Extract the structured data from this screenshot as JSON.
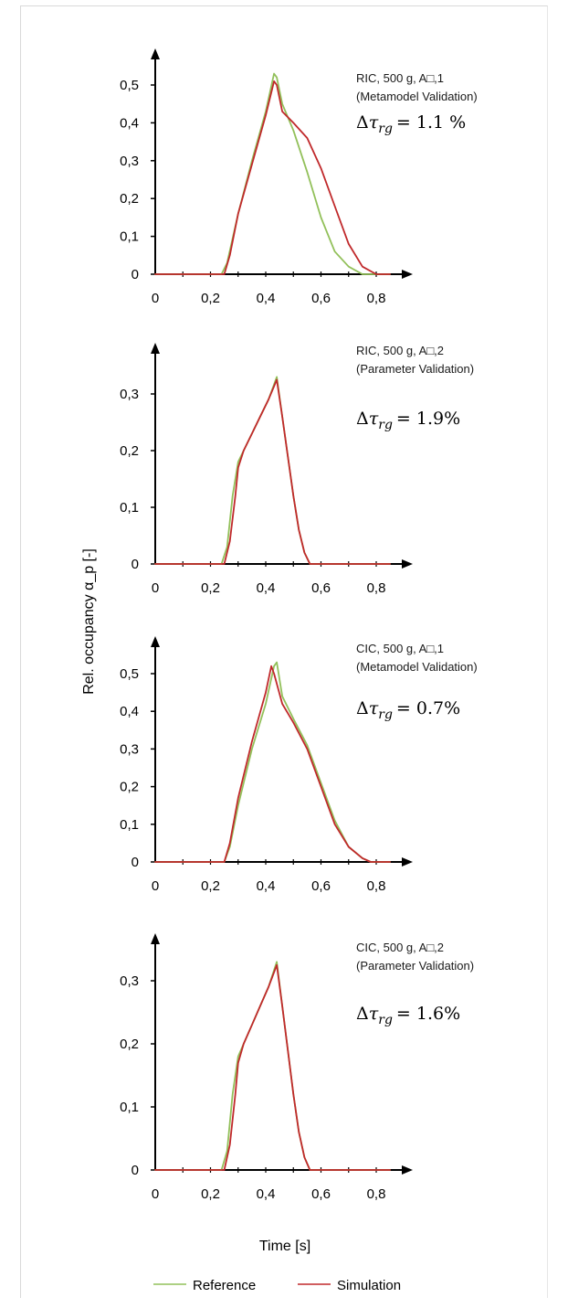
{
  "ylabel": "Rel. occupancy α_p [-]",
  "xlabel": "Time [s]",
  "legend": [
    {
      "label": "Reference",
      "color": "#92c05a"
    },
    {
      "label": "Simulation",
      "color": "#c0292b"
    }
  ],
  "chart_data": [
    {
      "type": "line",
      "annotation_line1": "RIC, 500 g, A□,1",
      "annotation_line2": "(Metamodel Validation)",
      "delta_text": "= 1.1 %",
      "xlim": [
        0,
        0.9
      ],
      "ylim": [
        0,
        0.55
      ],
      "x_ticks": [
        "0",
        "0,2",
        "0,4",
        "0,6",
        "0,8"
      ],
      "x_tick_values": [
        0,
        0.2,
        0.4,
        0.6,
        0.8
      ],
      "y_ticks": [
        "0",
        "0,1",
        "0,2",
        "0,3",
        "0,4",
        "0,5"
      ],
      "y_tick_values": [
        0,
        0.1,
        0.2,
        0.3,
        0.4,
        0.5
      ],
      "series": [
        {
          "name": "Reference",
          "color": "#92c05a",
          "x": [
            0,
            0.24,
            0.26,
            0.3,
            0.35,
            0.4,
            0.43,
            0.44,
            0.46,
            0.5,
            0.55,
            0.6,
            0.65,
            0.7,
            0.75,
            0.8,
            0.85
          ],
          "y": [
            0,
            0,
            0.03,
            0.16,
            0.3,
            0.43,
            0.53,
            0.52,
            0.45,
            0.38,
            0.27,
            0.15,
            0.06,
            0.02,
            0,
            0,
            0
          ]
        },
        {
          "name": "Simulation",
          "color": "#c0292b",
          "x": [
            0,
            0.25,
            0.27,
            0.3,
            0.35,
            0.4,
            0.43,
            0.44,
            0.46,
            0.5,
            0.55,
            0.6,
            0.65,
            0.7,
            0.75,
            0.8,
            0.85
          ],
          "y": [
            0,
            0,
            0.05,
            0.16,
            0.29,
            0.42,
            0.51,
            0.5,
            0.43,
            0.4,
            0.36,
            0.28,
            0.18,
            0.08,
            0.02,
            0,
            0
          ]
        }
      ]
    },
    {
      "type": "line",
      "annotation_line1": "RIC, 500 g, A□,2",
      "annotation_line2": "(Parameter Validation)",
      "delta_text": "= 1.9%",
      "xlim": [
        0,
        0.9
      ],
      "ylim": [
        0,
        0.36
      ],
      "x_ticks": [
        "0",
        "0,2",
        "0,4",
        "0,6",
        "0,8"
      ],
      "x_tick_values": [
        0,
        0.2,
        0.4,
        0.6,
        0.8
      ],
      "y_ticks": [
        "0",
        "0,1",
        "0,2",
        "0,3"
      ],
      "y_tick_values": [
        0,
        0.1,
        0.2,
        0.3
      ],
      "series": [
        {
          "name": "Reference",
          "color": "#92c05a",
          "x": [
            0,
            0.24,
            0.26,
            0.28,
            0.3,
            0.32,
            0.35,
            0.38,
            0.41,
            0.44,
            0.46,
            0.48,
            0.5,
            0.52,
            0.54,
            0.56,
            0.6,
            0.85
          ],
          "y": [
            0,
            0,
            0.03,
            0.12,
            0.18,
            0.2,
            0.23,
            0.26,
            0.29,
            0.33,
            0.26,
            0.19,
            0.12,
            0.06,
            0.02,
            0,
            0,
            0
          ]
        },
        {
          "name": "Simulation",
          "color": "#c0292b",
          "x": [
            0,
            0.25,
            0.27,
            0.29,
            0.3,
            0.32,
            0.35,
            0.38,
            0.41,
            0.44,
            0.46,
            0.48,
            0.5,
            0.52,
            0.54,
            0.56,
            0.6,
            0.85
          ],
          "y": [
            0,
            0,
            0.04,
            0.12,
            0.17,
            0.2,
            0.23,
            0.26,
            0.29,
            0.325,
            0.26,
            0.19,
            0.12,
            0.06,
            0.02,
            0,
            0,
            0
          ]
        }
      ]
    },
    {
      "type": "line",
      "annotation_line1": "CIC, 500 g, A□,1",
      "annotation_line2": "(Metamodel Validation)",
      "delta_text": "= 0.7%",
      "xlim": [
        0,
        0.9
      ],
      "ylim": [
        0,
        0.55
      ],
      "x_ticks": [
        "0",
        "0,2",
        "0,4",
        "0,6",
        "0,8"
      ],
      "x_tick_values": [
        0,
        0.2,
        0.4,
        0.6,
        0.8
      ],
      "y_ticks": [
        "0",
        "0,1",
        "0,2",
        "0,3",
        "0,4",
        "0,5"
      ],
      "y_tick_values": [
        0,
        0.1,
        0.2,
        0.3,
        0.4,
        0.5
      ],
      "series": [
        {
          "name": "Reference",
          "color": "#92c05a",
          "x": [
            0,
            0.25,
            0.27,
            0.3,
            0.35,
            0.4,
            0.43,
            0.44,
            0.46,
            0.5,
            0.55,
            0.6,
            0.65,
            0.7,
            0.75,
            0.78,
            0.85
          ],
          "y": [
            0,
            0,
            0.04,
            0.15,
            0.3,
            0.42,
            0.52,
            0.53,
            0.44,
            0.38,
            0.31,
            0.21,
            0.11,
            0.04,
            0.01,
            0,
            0
          ]
        },
        {
          "name": "Simulation",
          "color": "#c0292b",
          "x": [
            0,
            0.25,
            0.27,
            0.3,
            0.35,
            0.4,
            0.42,
            0.43,
            0.46,
            0.5,
            0.55,
            0.6,
            0.65,
            0.7,
            0.75,
            0.78,
            0.85
          ],
          "y": [
            0,
            0,
            0.05,
            0.17,
            0.32,
            0.45,
            0.52,
            0.5,
            0.42,
            0.37,
            0.3,
            0.2,
            0.1,
            0.04,
            0.01,
            0,
            0
          ]
        }
      ]
    },
    {
      "type": "line",
      "annotation_line1": "CIC, 500 g, A□,2",
      "annotation_line2": "(Parameter Validation)",
      "delta_text": "= 1.6%",
      "xlim": [
        0,
        0.9
      ],
      "ylim": [
        0,
        0.36
      ],
      "x_ticks": [
        "0",
        "0,2",
        "0,4",
        "0,6",
        "0,8"
      ],
      "x_tick_values": [
        0,
        0.2,
        0.4,
        0.6,
        0.8
      ],
      "y_ticks": [
        "0",
        "0,1",
        "0,2",
        "0,3"
      ],
      "y_tick_values": [
        0,
        0.1,
        0.2,
        0.3
      ],
      "series": [
        {
          "name": "Reference",
          "color": "#92c05a",
          "x": [
            0,
            0.24,
            0.26,
            0.28,
            0.3,
            0.32,
            0.35,
            0.38,
            0.41,
            0.44,
            0.46,
            0.48,
            0.5,
            0.52,
            0.54,
            0.56,
            0.6,
            0.85
          ],
          "y": [
            0,
            0,
            0.03,
            0.12,
            0.18,
            0.2,
            0.23,
            0.26,
            0.29,
            0.33,
            0.26,
            0.19,
            0.12,
            0.06,
            0.02,
            0,
            0,
            0
          ]
        },
        {
          "name": "Simulation",
          "color": "#c0292b",
          "x": [
            0,
            0.25,
            0.27,
            0.29,
            0.3,
            0.32,
            0.35,
            0.38,
            0.41,
            0.44,
            0.46,
            0.48,
            0.5,
            0.52,
            0.54,
            0.56,
            0.6,
            0.85
          ],
          "y": [
            0,
            0,
            0.04,
            0.12,
            0.17,
            0.2,
            0.23,
            0.26,
            0.29,
            0.325,
            0.26,
            0.19,
            0.12,
            0.06,
            0.02,
            0,
            0,
            0
          ]
        }
      ]
    }
  ]
}
